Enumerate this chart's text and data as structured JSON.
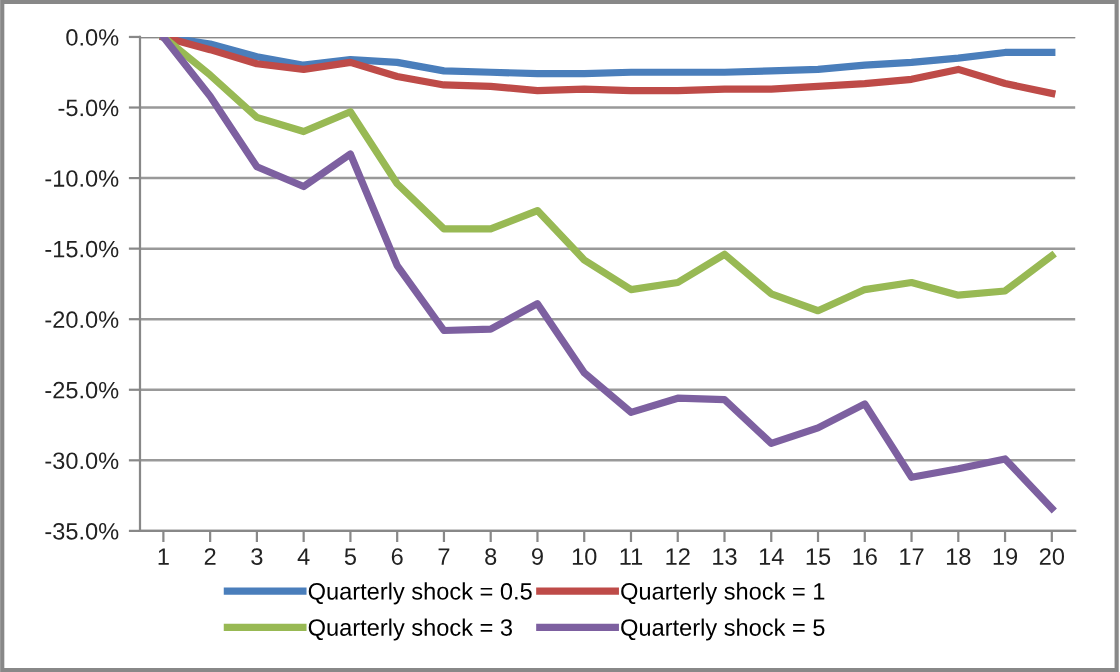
{
  "chart_data": {
    "type": "line",
    "categories": [
      "1",
      "2",
      "3",
      "4",
      "5",
      "6",
      "7",
      "8",
      "9",
      "10",
      "11",
      "12",
      "13",
      "14",
      "15",
      "16",
      "17",
      "18",
      "19",
      "20"
    ],
    "series": [
      {
        "name": "Quarterly shock = 0.5",
        "color": "#4a7ebb",
        "values": [
          0,
          -0.5,
          -1.4,
          -2.0,
          -1.6,
          -1.8,
          -2.4,
          -2.5,
          -2.6,
          -2.6,
          -2.5,
          -2.5,
          -2.5,
          -2.4,
          -2.3,
          -2.0,
          -1.8,
          -1.5,
          -1.1,
          -1.1
        ]
      },
      {
        "name": "Quarterly shock = 1",
        "color": "#be4b48",
        "values": [
          0,
          -0.9,
          -1.9,
          -2.3,
          -1.8,
          -2.8,
          -3.4,
          -3.5,
          -3.8,
          -3.7,
          -3.8,
          -3.8,
          -3.7,
          -3.7,
          -3.5,
          -3.3,
          -3.0,
          -2.3,
          -3.3,
          -4.0
        ]
      },
      {
        "name": "Quarterly shock = 3",
        "color": "#98b954",
        "values": [
          0,
          -2.7,
          -5.7,
          -6.7,
          -5.3,
          -10.4,
          -13.6,
          -13.6,
          -12.3,
          -15.8,
          -17.9,
          -17.4,
          -15.4,
          -18.2,
          -19.4,
          -17.9,
          -17.4,
          -18.3,
          -18.0,
          -15.5
        ]
      },
      {
        "name": "Quarterly shock = 5",
        "color": "#7d60a0",
        "values": [
          0,
          -4.2,
          -9.2,
          -10.6,
          -8.3,
          -16.2,
          -20.8,
          -20.7,
          -18.9,
          -23.8,
          -26.6,
          -25.6,
          -25.7,
          -28.8,
          -27.7,
          -26.0,
          -31.2,
          -30.6,
          -29.9,
          -33.4
        ]
      }
    ],
    "ylim": [
      -35,
      0
    ],
    "yticks": [
      {
        "value": 0,
        "label": "0.0%"
      },
      {
        "value": -5,
        "label": "-5.0%"
      },
      {
        "value": -10,
        "label": "-10.0%"
      },
      {
        "value": -15,
        "label": "-15.0%"
      },
      {
        "value": -20,
        "label": "-20.0%"
      },
      {
        "value": -25,
        "label": "-25.0%"
      },
      {
        "value": -30,
        "label": "-30.0%"
      },
      {
        "value": -35,
        "label": "-35.0%"
      }
    ],
    "grid": "y",
    "legend": "bottom",
    "marker": "none",
    "line_style": "solid"
  }
}
